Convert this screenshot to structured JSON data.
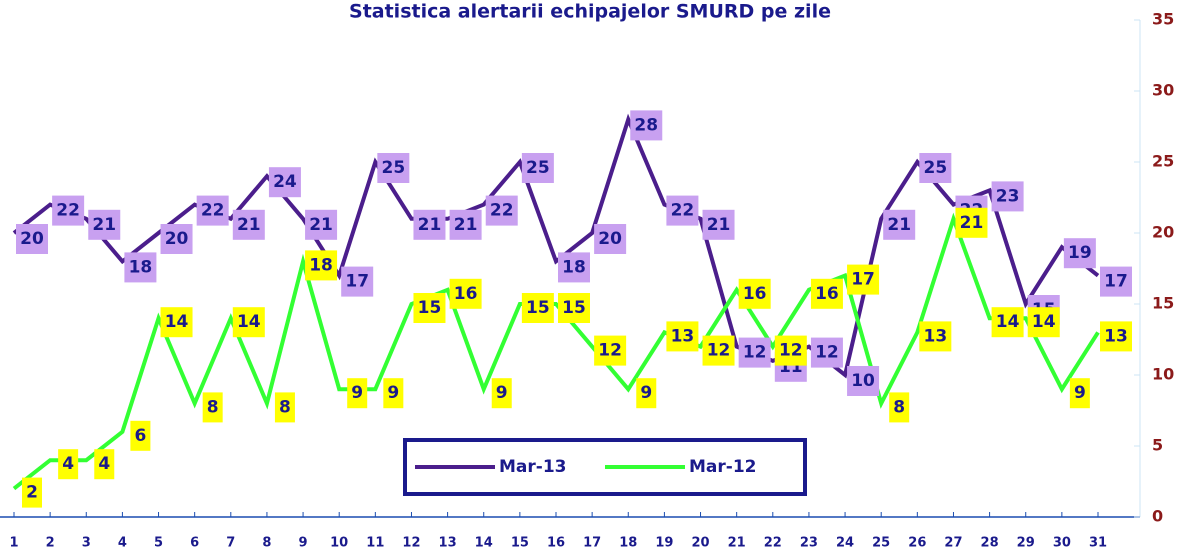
{
  "chart_data": {
    "type": "line",
    "title": "Statistica alertarii echipajelor SMURD pe zile",
    "categories": [
      "1",
      "2",
      "3",
      "4",
      "5",
      "6",
      "7",
      "8",
      "9",
      "10",
      "11",
      "12",
      "13",
      "14",
      "15",
      "16",
      "17",
      "18",
      "19",
      "20",
      "21",
      "22",
      "23",
      "24",
      "25",
      "26",
      "27",
      "28",
      "29",
      "30",
      "31"
    ],
    "series": [
      {
        "name": "Mar-13",
        "color": "#4b1e8c",
        "label_color": "#c8a0f0",
        "values": [
          20,
          22,
          21,
          18,
          20,
          22,
          21,
          24,
          21,
          17,
          25,
          21,
          21,
          22,
          25,
          18,
          20,
          28,
          22,
          21,
          12,
          11,
          12,
          10,
          21,
          25,
          22,
          23,
          15,
          19,
          17
        ]
      },
      {
        "name": "Mar-12",
        "color": "#33ff33",
        "label_color": "#ffff00",
        "values": [
          2,
          4,
          4,
          6,
          14,
          8,
          14,
          8,
          18,
          9,
          9,
          15,
          16,
          9,
          15,
          15,
          12,
          9,
          13,
          12,
          16,
          12,
          16,
          17,
          8,
          13,
          21,
          14,
          14,
          9,
          13
        ]
      }
    ],
    "ylim": [
      0,
      35
    ],
    "yticks": [
      0,
      5,
      10,
      15,
      20,
      25,
      30,
      35
    ],
    "axis_side": "right",
    "legend": "bottom"
  }
}
